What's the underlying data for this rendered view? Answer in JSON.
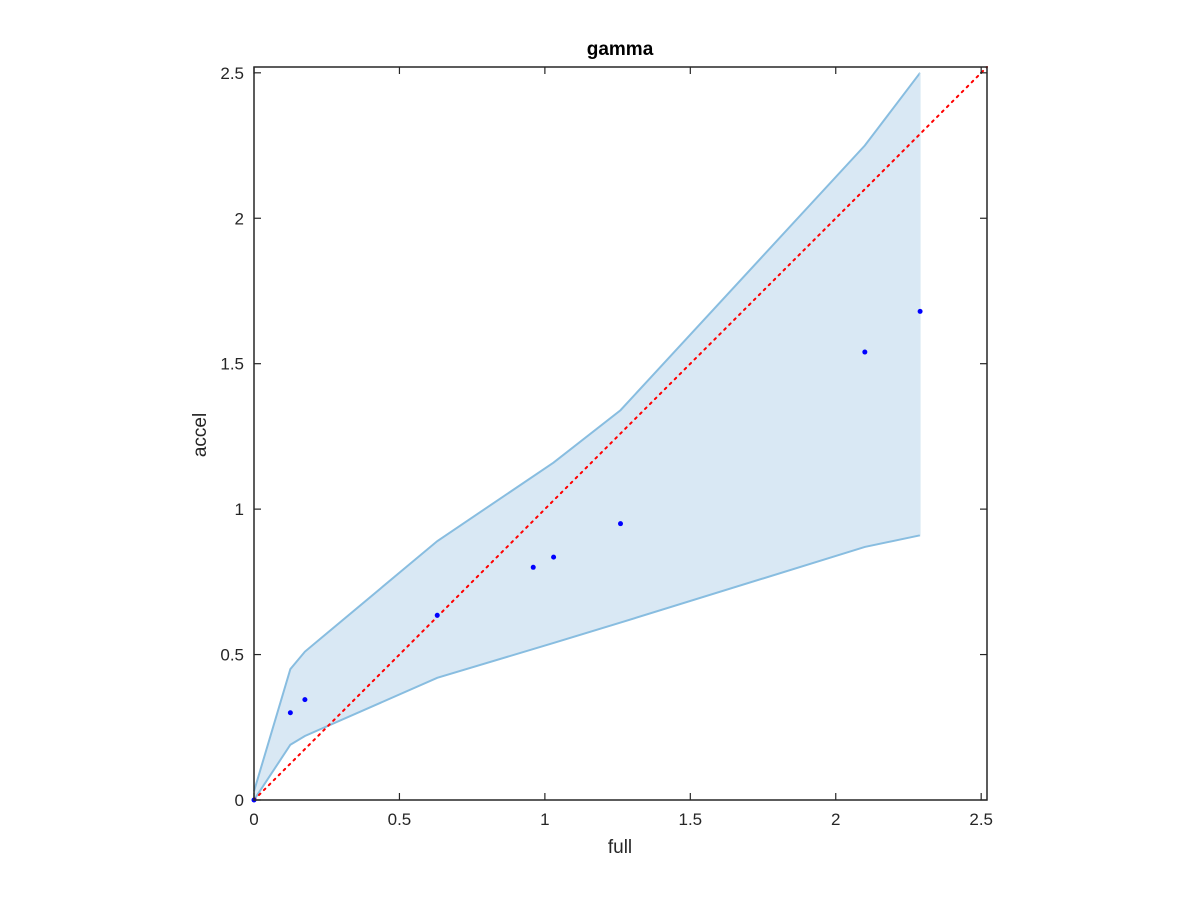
{
  "chart_data": {
    "type": "scatter",
    "title": "gamma",
    "xlabel": "full",
    "ylabel": "accel",
    "xlim": [
      0,
      2.52
    ],
    "ylim": [
      0,
      2.52
    ],
    "xticks": [
      0,
      0.5,
      1,
      1.5,
      2,
      2.5
    ],
    "yticks": [
      0,
      0.5,
      1,
      1.5,
      2,
      2.5
    ],
    "xtick_labels": [
      "0",
      "0.5",
      "1",
      "1.5",
      "2",
      "2.5"
    ],
    "ytick_labels": [
      "0",
      "0.5",
      "1",
      "1.5",
      "2",
      "2.5"
    ],
    "grid": false,
    "band": {
      "x": [
        0,
        0.125,
        0.175,
        0.63,
        1.03,
        1.26,
        2.1,
        2.29
      ],
      "upper": [
        0.03,
        0.45,
        0.51,
        0.89,
        1.16,
        1.34,
        2.25,
        2.5
      ],
      "lower": [
        0,
        0.19,
        0.22,
        0.42,
        0.54,
        0.61,
        0.87,
        0.91
      ],
      "fill_color": "#d9e8f4",
      "line_color": "#88bde0"
    },
    "points": {
      "x": [
        0,
        0.125,
        0.175,
        0.63,
        0.96,
        1.03,
        1.26,
        2.1,
        2.29
      ],
      "y": [
        0,
        0.3,
        0.345,
        0.635,
        0.8,
        0.835,
        0.95,
        1.54,
        1.68
      ],
      "color": "#0000ff"
    },
    "reference_line": {
      "x": [
        0,
        2.52
      ],
      "y": [
        0,
        2.52
      ],
      "color": "#ff0000",
      "style": "dotted"
    }
  }
}
